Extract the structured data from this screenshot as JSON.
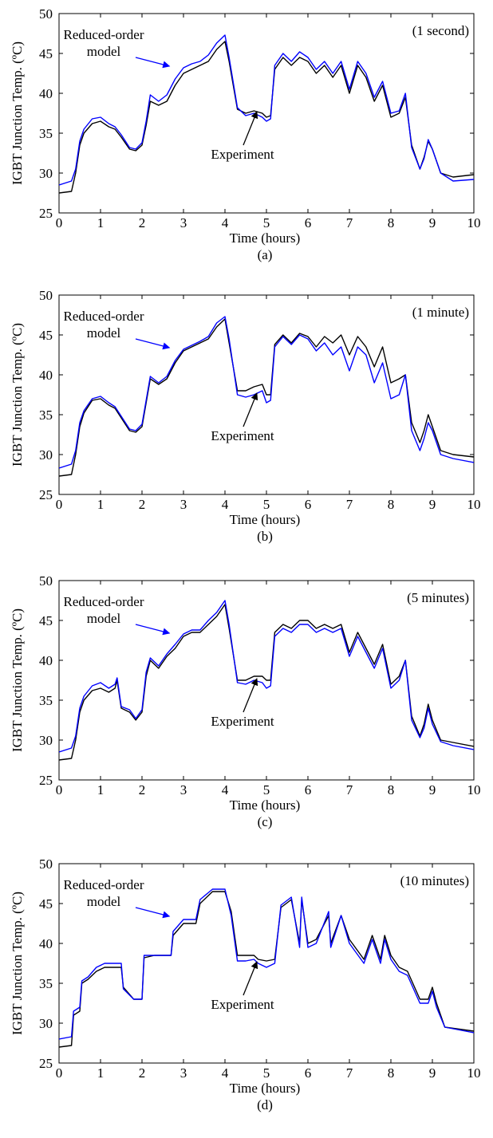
{
  "chart_data": [
    {
      "type": "line",
      "panel_label": "(a)",
      "annotation": "(1 second)",
      "xlabel": "Time (hours)",
      "ylabel": "IGBT Junction Temp. (ºC)",
      "xlim": [
        0,
        10
      ],
      "ylim": [
        25,
        50
      ],
      "xticks": [
        "0",
        "1",
        "2",
        "3",
        "4",
        "5",
        "6",
        "7",
        "8",
        "9",
        "10"
      ],
      "yticks": [
        "25",
        "30",
        "35",
        "40",
        "45",
        "50"
      ],
      "grid": false,
      "labels": [
        {
          "lines": [
            "Reduced-order",
            "model"
          ],
          "points_to": [
            2.7,
            43
          ]
        },
        {
          "lines": [
            "Experiment"
          ],
          "points_to": [
            4.75,
            38
          ]
        }
      ],
      "series": [
        {
          "color": "#000000",
          "x": [
            0,
            0.3,
            0.4,
            0.5,
            0.6,
            0.8,
            1.0,
            1.2,
            1.35,
            1.5,
            1.7,
            1.85,
            2.0,
            2.1,
            2.2,
            2.4,
            2.6,
            2.8,
            3.0,
            3.2,
            3.4,
            3.6,
            3.8,
            4.0,
            4.1,
            4.3,
            4.5,
            4.7,
            4.9,
            5.0,
            5.1,
            5.2,
            5.4,
            5.6,
            5.8,
            6.0,
            6.2,
            6.4,
            6.6,
            6.8,
            7.0,
            7.2,
            7.4,
            7.6,
            7.8,
            8.0,
            8.2,
            8.35,
            8.5,
            8.7,
            8.8,
            8.9,
            9.0,
            9.2,
            9.5,
            10
          ],
          "y": [
            27.5,
            27.7,
            30,
            33.5,
            35,
            36.2,
            36.5,
            35.8,
            35.5,
            34.5,
            33,
            32.8,
            33.5,
            36,
            39,
            38.5,
            39,
            41,
            42.5,
            43,
            43.5,
            44,
            45.5,
            46.5,
            44,
            38,
            37.5,
            37.8,
            37.5,
            37,
            37.2,
            43,
            44.5,
            43.5,
            44.5,
            44,
            42.5,
            43.5,
            42,
            43.5,
            40,
            43.5,
            42,
            39,
            41,
            37,
            37.5,
            39.5,
            33.5,
            30.5,
            32,
            34,
            33,
            30,
            29.5,
            29.8
          ]
        },
        {
          "color": "#0000ff",
          "x": [
            0,
            0.3,
            0.4,
            0.5,
            0.6,
            0.8,
            1.0,
            1.2,
            1.35,
            1.5,
            1.7,
            1.85,
            2.0,
            2.1,
            2.2,
            2.4,
            2.6,
            2.8,
            3.0,
            3.2,
            3.4,
            3.6,
            3.8,
            4.0,
            4.1,
            4.3,
            4.5,
            4.7,
            4.9,
            5.0,
            5.1,
            5.2,
            5.4,
            5.6,
            5.8,
            6.0,
            6.2,
            6.4,
            6.6,
            6.8,
            7.0,
            7.2,
            7.4,
            7.6,
            7.8,
            8.0,
            8.2,
            8.35,
            8.5,
            8.7,
            8.8,
            8.9,
            9.0,
            9.2,
            9.5,
            10
          ],
          "y": [
            28.5,
            29,
            30.5,
            34,
            35.5,
            36.8,
            37,
            36.2,
            35.8,
            34.8,
            33.2,
            33,
            33.8,
            36.5,
            39.8,
            39,
            39.8,
            41.8,
            43.2,
            43.7,
            44,
            44.8,
            46.3,
            47.3,
            44.5,
            38.2,
            37.2,
            37.5,
            37,
            36.5,
            36.8,
            43.5,
            45,
            44,
            45.2,
            44.5,
            43,
            44,
            42.5,
            44,
            40.5,
            44,
            42.5,
            39.5,
            41.5,
            37.5,
            37.8,
            40,
            33.2,
            30.5,
            31.8,
            34.2,
            33,
            30,
            29,
            29.2
          ]
        }
      ]
    },
    {
      "type": "line",
      "panel_label": "(b)",
      "annotation": "(1 minute)",
      "xlabel": "Time (hours)",
      "ylabel": "IGBT Junction Temp. (ºC)",
      "xlim": [
        0,
        10
      ],
      "ylim": [
        25,
        50
      ],
      "xticks": [
        "0",
        "1",
        "2",
        "3",
        "4",
        "5",
        "6",
        "7",
        "8",
        "9",
        "10"
      ],
      "yticks": [
        "25",
        "30",
        "35",
        "40",
        "45",
        "50"
      ],
      "grid": false,
      "labels": [
        {
          "lines": [
            "Reduced-order",
            "model"
          ],
          "points_to": [
            2.7,
            43
          ]
        },
        {
          "lines": [
            "Experiment"
          ],
          "points_to": [
            4.75,
            38
          ]
        }
      ],
      "series": [
        {
          "color": "#000000",
          "x": [
            0,
            0.3,
            0.4,
            0.5,
            0.6,
            0.8,
            1.0,
            1.2,
            1.35,
            1.5,
            1.7,
            1.85,
            2.0,
            2.1,
            2.2,
            2.4,
            2.6,
            2.8,
            3.0,
            3.2,
            3.4,
            3.6,
            3.8,
            4.0,
            4.1,
            4.3,
            4.5,
            4.7,
            4.9,
            5.0,
            5.1,
            5.2,
            5.4,
            5.6,
            5.8,
            6.0,
            6.2,
            6.4,
            6.6,
            6.8,
            7.0,
            7.2,
            7.4,
            7.6,
            7.8,
            8.0,
            8.2,
            8.35,
            8.5,
            8.7,
            8.8,
            8.9,
            9.0,
            9.2,
            9.5,
            10
          ],
          "y": [
            27.3,
            27.5,
            30,
            33.5,
            35.2,
            36.8,
            37,
            36.2,
            35.8,
            34.6,
            33,
            32.8,
            33.5,
            36.5,
            39.5,
            38.8,
            39.5,
            41.5,
            43,
            43.5,
            44,
            44.5,
            46,
            47,
            44,
            38,
            38,
            38.5,
            38.8,
            37.5,
            37.5,
            43.8,
            45,
            44,
            45.2,
            44.8,
            43.5,
            44.8,
            44,
            45,
            42.5,
            44.8,
            43.5,
            41,
            43.5,
            39,
            39.5,
            40,
            34,
            31.5,
            33,
            35,
            33.5,
            30.5,
            30,
            29.7
          ]
        },
        {
          "color": "#0000ff",
          "x": [
            0,
            0.3,
            0.4,
            0.5,
            0.6,
            0.8,
            1.0,
            1.2,
            1.35,
            1.5,
            1.7,
            1.85,
            2.0,
            2.1,
            2.2,
            2.4,
            2.6,
            2.8,
            3.0,
            3.2,
            3.4,
            3.6,
            3.8,
            4.0,
            4.1,
            4.3,
            4.5,
            4.7,
            4.9,
            5.0,
            5.1,
            5.2,
            5.4,
            5.6,
            5.8,
            6.0,
            6.2,
            6.4,
            6.6,
            6.8,
            7.0,
            7.2,
            7.4,
            7.6,
            7.8,
            8.0,
            8.2,
            8.35,
            8.5,
            8.7,
            8.8,
            8.9,
            9.0,
            9.2,
            9.5,
            10
          ],
          "y": [
            28.3,
            28.8,
            30.5,
            34,
            35.5,
            37,
            37.3,
            36.5,
            36,
            34.8,
            33.2,
            33,
            33.8,
            36.8,
            39.8,
            39,
            39.8,
            41.8,
            43.2,
            43.7,
            44.2,
            44.8,
            46.5,
            47.3,
            44.5,
            37.5,
            37.2,
            37.5,
            38,
            36.5,
            36.8,
            43.5,
            44.8,
            43.8,
            45,
            44.5,
            43,
            44,
            42.5,
            43.5,
            40.5,
            43.5,
            42.5,
            39,
            41.5,
            37,
            37.5,
            40,
            33,
            30.5,
            32,
            34,
            33,
            30,
            29.5,
            29
          ]
        }
      ]
    },
    {
      "type": "line",
      "panel_label": "(c)",
      "annotation": "(5 minutes)",
      "xlabel": "Time (hours)",
      "ylabel": "IGBT Junction Temp. (ºC)",
      "xlim": [
        0,
        10
      ],
      "ylim": [
        25,
        50
      ],
      "xticks": [
        "0",
        "1",
        "2",
        "3",
        "4",
        "5",
        "6",
        "7",
        "8",
        "9",
        "10"
      ],
      "yticks": [
        "25",
        "30",
        "35",
        "40",
        "45",
        "50"
      ],
      "grid": false,
      "labels": [
        {
          "lines": [
            "Reduced-order",
            "model"
          ],
          "points_to": [
            2.7,
            43
          ]
        },
        {
          "lines": [
            "Experiment"
          ],
          "points_to": [
            4.75,
            38
          ]
        }
      ],
      "series": [
        {
          "color": "#000000",
          "x": [
            0,
            0.3,
            0.4,
            0.5,
            0.6,
            0.8,
            1.0,
            1.2,
            1.35,
            1.4,
            1.5,
            1.7,
            1.85,
            2.0,
            2.1,
            2.2,
            2.4,
            2.6,
            2.8,
            3.0,
            3.2,
            3.4,
            3.6,
            3.8,
            4.0,
            4.1,
            4.3,
            4.5,
            4.7,
            4.9,
            5.0,
            5.1,
            5.2,
            5.4,
            5.6,
            5.8,
            6.0,
            6.2,
            6.4,
            6.6,
            6.8,
            7.0,
            7.2,
            7.4,
            7.6,
            7.8,
            8.0,
            8.2,
            8.35,
            8.5,
            8.7,
            8.8,
            8.9,
            9.0,
            9.2,
            9.5,
            10
          ],
          "y": [
            27.5,
            27.7,
            30,
            33.5,
            35,
            36.2,
            36.5,
            36,
            36.5,
            37.5,
            34,
            33.5,
            32.5,
            33.5,
            38,
            40,
            39,
            40.5,
            41.5,
            43,
            43.5,
            43.5,
            44.5,
            45.5,
            47,
            44,
            37.5,
            37.5,
            38,
            38,
            37.5,
            37.5,
            43.5,
            44.5,
            44,
            45,
            45,
            44,
            44.5,
            44,
            44.5,
            41,
            43.5,
            41.5,
            39.5,
            42,
            37,
            38,
            40,
            33,
            30.5,
            32,
            34.5,
            32.5,
            30,
            29.7,
            29.2
          ]
        },
        {
          "color": "#0000ff",
          "x": [
            0,
            0.3,
            0.4,
            0.5,
            0.6,
            0.8,
            1.0,
            1.2,
            1.35,
            1.4,
            1.5,
            1.7,
            1.85,
            2.0,
            2.1,
            2.2,
            2.4,
            2.6,
            2.8,
            3.0,
            3.2,
            3.4,
            3.6,
            3.8,
            4.0,
            4.1,
            4.3,
            4.5,
            4.7,
            4.9,
            5.0,
            5.1,
            5.2,
            5.4,
            5.6,
            5.8,
            6.0,
            6.2,
            6.4,
            6.6,
            6.8,
            7.0,
            7.2,
            7.4,
            7.6,
            7.8,
            8.0,
            8.2,
            8.35,
            8.5,
            8.7,
            8.8,
            8.9,
            9.0,
            9.2,
            9.5,
            10
          ],
          "y": [
            28.5,
            29,
            30.5,
            34,
            35.5,
            36.8,
            37.2,
            36.5,
            37,
            37.8,
            34.2,
            33.8,
            32.7,
            33.8,
            38.5,
            40.3,
            39.3,
            40.8,
            42,
            43.3,
            43.8,
            43.8,
            45,
            46,
            47.5,
            44.5,
            37.2,
            37,
            37.5,
            37.2,
            36.5,
            36.8,
            43,
            44,
            43.5,
            44.5,
            44.5,
            43.5,
            44,
            43.5,
            44,
            40.5,
            43,
            41,
            39,
            41.5,
            36.5,
            37.5,
            40,
            32.5,
            30.3,
            31.5,
            34,
            32,
            29.8,
            29.3,
            28.8
          ]
        }
      ]
    },
    {
      "type": "line",
      "panel_label": "(d)",
      "annotation": "(10 minutes)",
      "xlabel": "Time (hours)",
      "ylabel": "IGBT Junction Temp. (ºC)",
      "xlim": [
        0,
        10
      ],
      "ylim": [
        25,
        50
      ],
      "xticks": [
        "0",
        "1",
        "2",
        "3",
        "4",
        "5",
        "6",
        "7",
        "8",
        "9",
        "10"
      ],
      "yticks": [
        "25",
        "30",
        "35",
        "40",
        "45",
        "50"
      ],
      "grid": false,
      "labels": [
        {
          "lines": [
            "Reduced-order",
            "model"
          ],
          "points_to": [
            2.7,
            43
          ]
        },
        {
          "lines": [
            "Experiment"
          ],
          "points_to": [
            4.75,
            38
          ]
        }
      ],
      "series": [
        {
          "color": "#000000",
          "x": [
            0,
            0.3,
            0.35,
            0.5,
            0.55,
            0.7,
            0.9,
            1.1,
            1.3,
            1.5,
            1.55,
            1.8,
            2.0,
            2.05,
            2.3,
            2.7,
            2.75,
            3.0,
            3.3,
            3.4,
            3.7,
            4.0,
            4.15,
            4.3,
            4.5,
            4.7,
            4.8,
            5.0,
            5.2,
            5.35,
            5.6,
            5.8,
            5.85,
            6.0,
            6.2,
            6.5,
            6.55,
            6.8,
            7.0,
            7.35,
            7.55,
            7.75,
            7.85,
            8.0,
            8.2,
            8.4,
            8.7,
            8.9,
            9.0,
            9.1,
            9.3,
            10
          ],
          "y": [
            27,
            27.2,
            31,
            31.5,
            35,
            35.5,
            36.5,
            37,
            37,
            37,
            34.5,
            33,
            33,
            38.2,
            38.5,
            38.5,
            41,
            42.5,
            42.5,
            45,
            46.5,
            46.5,
            44,
            38.5,
            38.5,
            38.5,
            38,
            37.8,
            38,
            44.5,
            45.5,
            40,
            45.5,
            40,
            40.5,
            43.5,
            40,
            43.5,
            40.5,
            38,
            41,
            38,
            41,
            38.5,
            37,
            36.5,
            33,
            33,
            34.5,
            32.5,
            29.5,
            29
          ]
        },
        {
          "color": "#0000ff",
          "x": [
            0,
            0.3,
            0.35,
            0.5,
            0.55,
            0.7,
            0.9,
            1.1,
            1.3,
            1.5,
            1.55,
            1.8,
            2.0,
            2.05,
            2.3,
            2.7,
            2.75,
            3.0,
            3.3,
            3.4,
            3.7,
            4.0,
            4.15,
            4.3,
            4.5,
            4.7,
            4.8,
            5.0,
            5.2,
            5.35,
            5.6,
            5.8,
            5.85,
            6.0,
            6.2,
            6.5,
            6.55,
            6.8,
            7.0,
            7.35,
            7.55,
            7.75,
            7.85,
            8.0,
            8.2,
            8.4,
            8.7,
            8.9,
            9.0,
            9.1,
            9.3,
            10
          ],
          "y": [
            28,
            28.3,
            31.5,
            32,
            35.3,
            35.8,
            37,
            37.5,
            37.5,
            37.5,
            34.3,
            33,
            33,
            38.5,
            38.5,
            38.5,
            41.5,
            43,
            43,
            45.5,
            46.8,
            46.8,
            43.5,
            37.8,
            37.8,
            38,
            37.5,
            37,
            37.5,
            44.8,
            45.8,
            39.5,
            45.8,
            39.5,
            40,
            44,
            39.5,
            43.5,
            40,
            37.5,
            40.5,
            37.5,
            40.5,
            38,
            36.5,
            36,
            32.5,
            32.5,
            34,
            32,
            29.5,
            28.8
          ]
        }
      ]
    }
  ]
}
